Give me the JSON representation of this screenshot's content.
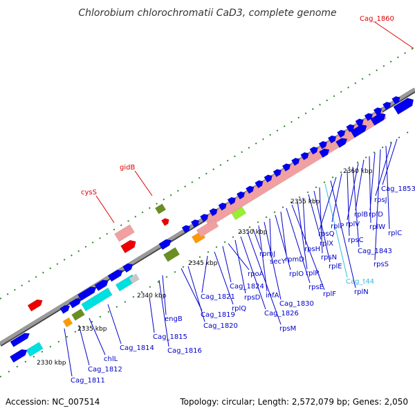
{
  "title": "Chlorobium chlorochromatii CaD3, complete genome",
  "footer": {
    "accession": "Accession: NC_007514",
    "summary": "Topology: circular; Length: 2,572,079 bp; Genes: 2,050"
  },
  "scale_labels": [
    "2330 kbp",
    "2335 kbp",
    "2340 kbp",
    "2345 kbp",
    "2350 kbp",
    "2355 kbp",
    "2360 kbp"
  ],
  "gene_labels": [
    {
      "text": "Cag_1811",
      "color": "#0000cc"
    },
    {
      "text": "Cag_1812",
      "color": "#0000cc"
    },
    {
      "text": "chlL",
      "color": "#0000cc"
    },
    {
      "text": "Cag_1814",
      "color": "#0000cc"
    },
    {
      "text": "Cag_1815",
      "color": "#0000cc"
    },
    {
      "text": "Cag_1816",
      "color": "#0000cc"
    },
    {
      "text": "engB",
      "color": "#0000cc"
    },
    {
      "text": "Cag_1819",
      "color": "#0000cc"
    },
    {
      "text": "Cag_1820",
      "color": "#0000cc"
    },
    {
      "text": "Cag_1821",
      "color": "#0000cc"
    },
    {
      "text": "rplQ",
      "color": "#0000cc"
    },
    {
      "text": "Cag_1824",
      "color": "#0000cc"
    },
    {
      "text": "rpoA",
      "color": "#0000cc"
    },
    {
      "text": "rpsD",
      "color": "#0000cc"
    },
    {
      "text": "Cag_1826",
      "color": "#0000cc"
    },
    {
      "text": "rpsM",
      "color": "#0000cc"
    },
    {
      "text": "rpmJ",
      "color": "#0000cc"
    },
    {
      "text": "infA",
      "color": "#0000cc"
    },
    {
      "text": "Cag_1830",
      "color": "#0000cc"
    },
    {
      "text": "secY",
      "color": "#0000cc"
    },
    {
      "text": "rplO",
      "color": "#0000cc"
    },
    {
      "text": "rpmD",
      "color": "#0000cc"
    },
    {
      "text": "rpsE",
      "color": "#0000cc"
    },
    {
      "text": "rplF",
      "color": "#0000cc"
    },
    {
      "text": "rplR",
      "color": "#0000cc"
    },
    {
      "text": "rpsH",
      "color": "#0000cc"
    },
    {
      "text": "rplX",
      "color": "#0000cc"
    },
    {
      "text": "rplE",
      "color": "#0000cc"
    },
    {
      "text": "rpsN",
      "color": "#0000cc"
    },
    {
      "text": "Cag_t44",
      "color": "#33bbdd"
    },
    {
      "text": "rplN",
      "color": "#0000cc"
    },
    {
      "text": "rpsQ",
      "color": "#0000cc"
    },
    {
      "text": "rplP",
      "color": "#0000cc"
    },
    {
      "text": "rpsC",
      "color": "#0000cc"
    },
    {
      "text": "Cag_1843",
      "color": "#0000cc"
    },
    {
      "text": "rplV",
      "color": "#0000cc"
    },
    {
      "text": "rplB",
      "color": "#0000cc"
    },
    {
      "text": "rplW",
      "color": "#0000cc"
    },
    {
      "text": "rplD",
      "color": "#0000cc"
    },
    {
      "text": "rpsS",
      "color": "#0000cc"
    },
    {
      "text": "rplC",
      "color": "#0000cc"
    },
    {
      "text": "rpsJ",
      "color": "#0000cc"
    },
    {
      "text": "Cag_1853",
      "color": "#0000cc"
    }
  ],
  "red_labels": [
    {
      "text": "cysS",
      "color": "#dd0000"
    },
    {
      "text": "gidB",
      "color": "#dd0000"
    },
    {
      "text": "Cag_1860",
      "color": "#dd0000"
    }
  ],
  "colors": {
    "backbone": "#808080",
    "cds_forward": "#0000ee",
    "cds_other": "#ee0000",
    "rrna_pink": "#f0a0a0",
    "trna_cyan": "#00e0e0",
    "olive": "#6b8e23",
    "orange": "#ff9900",
    "lime": "#99ee33",
    "tick_green": "#228822"
  }
}
